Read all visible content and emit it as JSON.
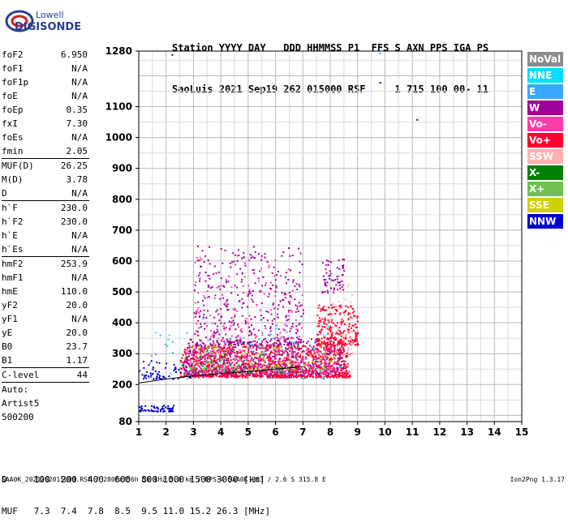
{
  "logo": {
    "line1": "Lowell",
    "line2": "DIGISONDE"
  },
  "header": {
    "line1": "Station YYYY DAY   DDD HHMMSS P1  FFS S AXN PPS IGA PS",
    "line2": "SaoLuis 2021 Sep19 262 015000 RSF     1 715 100 00- 11"
  },
  "params": [
    {
      "k": "foF2",
      "v": "6.950"
    },
    {
      "k": "foF1",
      "v": "N/A"
    },
    {
      "k": "foF1p",
      "v": "N/A"
    },
    {
      "k": "foE",
      "v": "N/A"
    },
    {
      "k": "foEp",
      "v": "0.35"
    },
    {
      "k": "fxI",
      "v": "7.30"
    },
    {
      "k": "foEs",
      "v": "N/A"
    },
    {
      "k": "fmin",
      "v": "2.05"
    },
    {
      "sep": true
    },
    {
      "k": "MUF(D)",
      "v": "26.25"
    },
    {
      "k": "M(D)",
      "v": "3.78"
    },
    {
      "k": "D",
      "v": "N/A"
    },
    {
      "sep": true
    },
    {
      "k": "h`F",
      "v": "230.0"
    },
    {
      "k": "h`F2",
      "v": "230.0"
    },
    {
      "k": "h`E",
      "v": "N/A"
    },
    {
      "k": "h`Es",
      "v": "N/A"
    },
    {
      "sep": true
    },
    {
      "k": "hmF2",
      "v": "253.9"
    },
    {
      "k": "hmF1",
      "v": "N/A"
    },
    {
      "k": "hmE",
      "v": "110.0"
    },
    {
      "k": "yF2",
      "v": "20.0"
    },
    {
      "k": "yF1",
      "v": "N/A"
    },
    {
      "k": "yE",
      "v": "20.0"
    },
    {
      "k": "B0",
      "v": "23.7"
    },
    {
      "k": "B1",
      "v": "1.17"
    },
    {
      "sep": true
    },
    {
      "k": "C-level",
      "v": "44"
    },
    {
      "sep": true
    },
    {
      "k": "Auto:",
      "v": ""
    },
    {
      "k": "Artist5",
      "v": ""
    },
    {
      "k": "500200",
      "v": ""
    }
  ],
  "legend": [
    {
      "label": "NoVal",
      "color": "#8c8c8c"
    },
    {
      "label": "NNE",
      "color": "#00e0ff"
    },
    {
      "label": "E",
      "color": "#3aa8ff"
    },
    {
      "label": "W",
      "color": "#a0009a"
    },
    {
      "label": "Vo-",
      "color": "#ff3ca8"
    },
    {
      "label": "Vo+",
      "color": "#ff0030"
    },
    {
      "label": "SSW",
      "color": "#ffb0b0"
    },
    {
      "label": "X-",
      "color": "#008000"
    },
    {
      "label": "X+",
      "color": "#70c050"
    },
    {
      "label": "SSE",
      "color": "#d0d000"
    },
    {
      "label": "NNW",
      "color": "#0000d0"
    }
  ],
  "dmuf": {
    "d": "D     100  200  400  600  800 1000 1500 3000 [km]",
    "muf": "MUF   7.3  7.4  7.8  8.5  9.5 11.0 15.2 26.3 [MHz]"
  },
  "footer": "SAA0K_2021262015000.RSF / 280fx256h 50 kHz 5.0 km / DPS-4 SAA0K 903 / 2.6 S 315.8 E",
  "version": "Ion2Png 1.3.17",
  "chart_data": {
    "type": "scatter",
    "title": "",
    "xlabel": "",
    "ylabel": "",
    "xlim": [
      1,
      15
    ],
    "ylim": [
      80,
      1280
    ],
    "xticks": [
      1,
      2,
      3,
      4,
      5,
      6,
      7,
      8,
      9,
      10,
      11,
      12,
      13,
      14,
      15
    ],
    "yticks": [
      80,
      200,
      300,
      400,
      500,
      600,
      700,
      800,
      900,
      1000,
      1100,
      1280
    ],
    "grid": true,
    "legend": "right",
    "trace": {
      "name": "",
      "x": [
        1.0,
        2.0,
        3.0,
        4.0,
        5.0,
        6.0,
        7.0
      ],
      "y": [
        205,
        218,
        228,
        236,
        242,
        250,
        258
      ]
    },
    "clusters": [
      {
        "series": "W",
        "x": [
          2.6,
          8.5
        ],
        "y": [
          230,
          350
        ],
        "n": 900
      },
      {
        "series": "Vo+",
        "x": [
          2.5,
          8.7
        ],
        "y": [
          225,
          330
        ],
        "n": 900
      },
      {
        "series": "Vo-",
        "x": [
          2.8,
          8.2
        ],
        "y": [
          240,
          320
        ],
        "n": 300
      },
      {
        "series": "W",
        "x": [
          3.0,
          7.0
        ],
        "y": [
          330,
          650
        ],
        "n": 380
      },
      {
        "series": "Vo-",
        "x": [
          3.0,
          7.0
        ],
        "y": [
          350,
          620
        ],
        "n": 120
      },
      {
        "series": "Vo+",
        "x": [
          7.5,
          9.0
        ],
        "y": [
          330,
          460
        ],
        "n": 260
      },
      {
        "series": "W",
        "x": [
          7.6,
          8.5
        ],
        "y": [
          500,
          610
        ],
        "n": 60
      },
      {
        "series": "SSW",
        "x": [
          8.0,
          8.8
        ],
        "y": [
          300,
          560
        ],
        "n": 60
      },
      {
        "series": "X+",
        "x": [
          2.8,
          8.0
        ],
        "y": [
          250,
          330
        ],
        "n": 80
      },
      {
        "series": "SSE",
        "x": [
          2.8,
          8.5
        ],
        "y": [
          250,
          330
        ],
        "n": 60
      },
      {
        "series": "X-",
        "x": [
          2.5,
          7.0
        ],
        "y": [
          240,
          300
        ],
        "n": 50
      },
      {
        "series": "NNE",
        "x": [
          1.4,
          8.5
        ],
        "y": [
          220,
          400
        ],
        "n": 40
      },
      {
        "series": "E",
        "x": [
          1.2,
          7.5
        ],
        "y": [
          220,
          420
        ],
        "n": 40
      },
      {
        "series": "NNW",
        "x": [
          1.0,
          3.0
        ],
        "y": [
          220,
          280
        ],
        "n": 60
      },
      {
        "series": "NNW",
        "x": [
          1.0,
          2.3
        ],
        "y": [
          115,
          135
        ],
        "n": 60
      }
    ],
    "isolated": [
      {
        "series": "NNW",
        "x": 2.2,
        "y": 1270
      },
      {
        "series": "NNW",
        "x": 9.8,
        "y": 1180
      },
      {
        "series": "E",
        "x": 9.8,
        "y": 1275
      },
      {
        "series": "NNW",
        "x": 11.15,
        "y": 1060
      }
    ]
  }
}
